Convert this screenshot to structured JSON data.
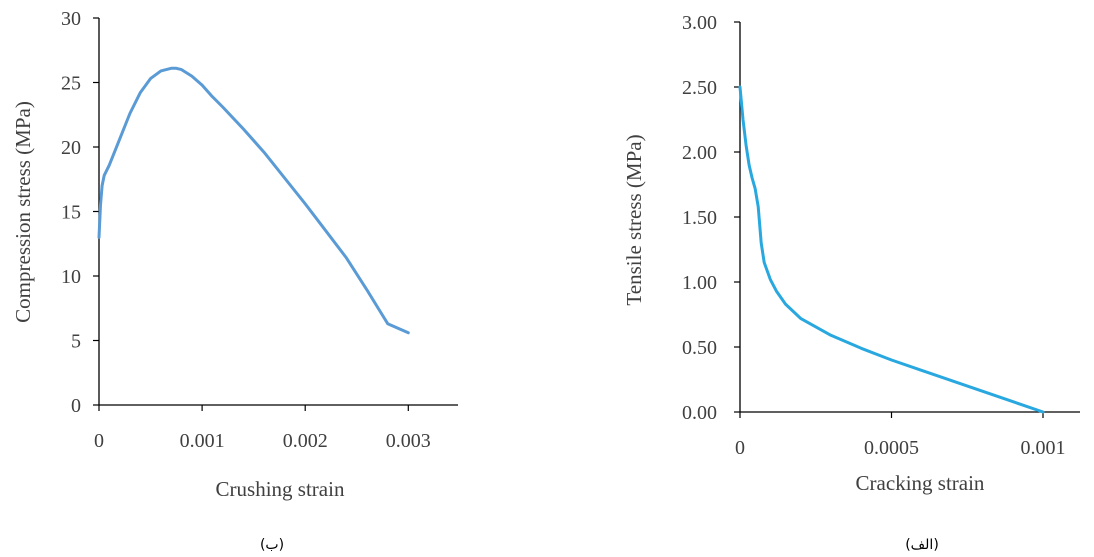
{
  "chart_data": [
    {
      "type": "line",
      "xlabel": "Crushing strain",
      "ylabel": "Compression stress (MPa)",
      "caption": "(ب)",
      "xlim": [
        0,
        0.0035
      ],
      "ylim": [
        0,
        30
      ],
      "xticks": [
        0,
        0.001,
        0.002,
        0.003
      ],
      "xtick_labels": [
        "0",
        "0.001",
        "0.002",
        "0.003"
      ],
      "yticks": [
        0,
        5,
        10,
        15,
        20,
        25,
        30
      ],
      "ytick_labels": [
        "0",
        "5",
        "10",
        "15",
        "20",
        "25",
        "30"
      ],
      "grid": false,
      "color": "#5b9bd5",
      "x": [
        0,
        1.5e-05,
        3e-05,
        5e-05,
        0.0001,
        0.0002,
        0.0003,
        0.0004,
        0.0005,
        0.0006,
        0.0007,
        0.00075,
        0.0008,
        0.0009,
        0.001,
        0.0011,
        0.0012,
        0.0014,
        0.0016,
        0.0018,
        0.002,
        0.0022,
        0.0024,
        0.0026,
        0.0028,
        0.003
      ],
      "y": [
        13.0,
        15.5,
        17.0,
        17.8,
        18.6,
        20.6,
        22.6,
        24.2,
        25.3,
        25.9,
        26.1,
        26.1,
        26.0,
        25.5,
        24.8,
        23.9,
        23.1,
        21.4,
        19.6,
        17.6,
        15.6,
        13.5,
        11.4,
        8.9,
        6.3,
        5.6
      ]
    },
    {
      "type": "line",
      "xlabel": "Cracking strain",
      "ylabel": "Tensile stress (MPa)",
      "caption": "(الف)",
      "xlim": [
        0,
        0.0012
      ],
      "ylim": [
        0,
        3
      ],
      "xticks": [
        0,
        0.0005,
        0.001
      ],
      "xtick_labels": [
        "0",
        "0.0005",
        "0.001"
      ],
      "yticks": [
        0,
        0.5,
        1,
        1.5,
        2,
        2.5,
        3
      ],
      "ytick_labels": [
        "0.00",
        "0.50",
        "1.00",
        "1.50",
        "2.00",
        "2.50",
        "3.00"
      ],
      "grid": false,
      "color": "#29a8e0",
      "x": [
        0,
        1e-05,
        2e-05,
        3e-05,
        4e-05,
        5e-05,
        6e-05,
        7e-05,
        8e-05,
        0.0001,
        0.00012,
        0.00015,
        0.0002,
        0.0003,
        0.0004,
        0.0005,
        0.0006,
        0.0007,
        0.0008,
        0.0009,
        0.001
      ],
      "y": [
        2.5,
        2.25,
        2.05,
        1.9,
        1.8,
        1.72,
        1.58,
        1.3,
        1.15,
        1.02,
        0.93,
        0.83,
        0.72,
        0.59,
        0.49,
        0.4,
        0.32,
        0.24,
        0.16,
        0.08,
        0.0
      ]
    }
  ]
}
